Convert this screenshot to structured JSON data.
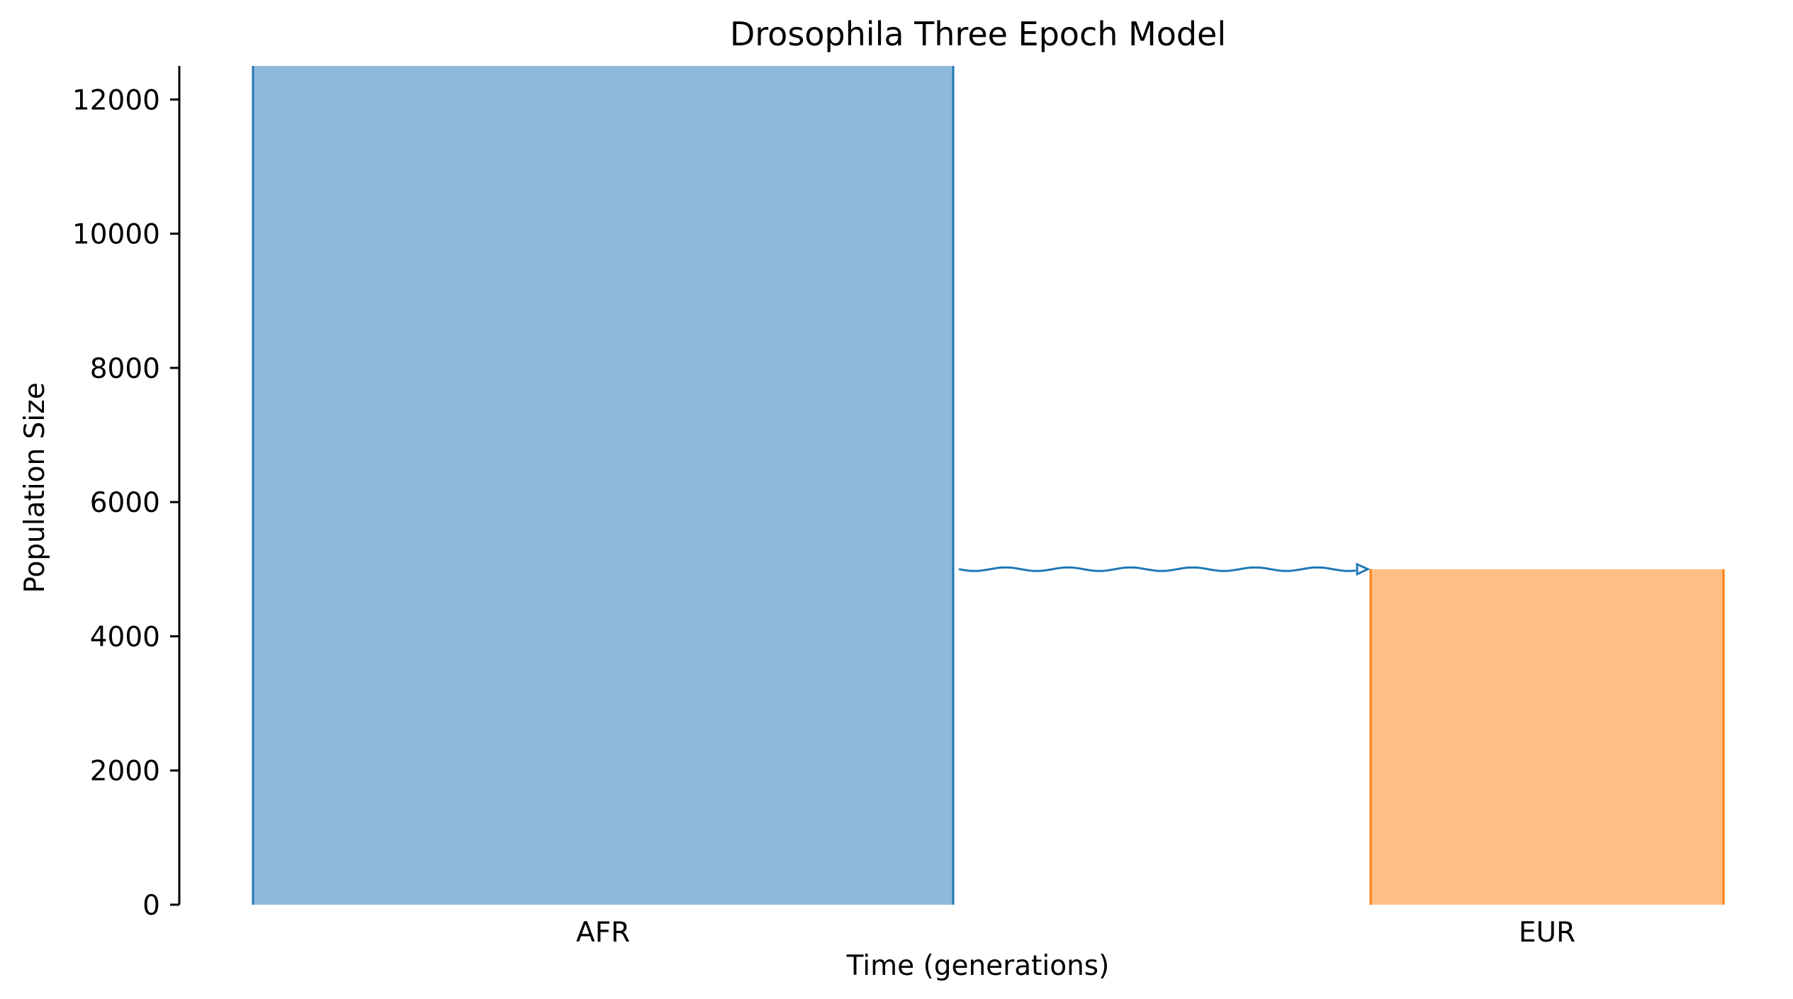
{
  "chart_data": {
    "type": "demography",
    "title": "Drosophila Three Epoch Model",
    "xlabel": "Time (generations)",
    "ylabel": "Population Size",
    "ylim": [
      0,
      12500
    ],
    "yticks": [
      0,
      2000,
      4000,
      6000,
      8000,
      10000,
      12000
    ],
    "grid": false,
    "legend": "none",
    "demes": [
      {
        "name": "AFR",
        "size": 12500,
        "color": "#1f77b4",
        "fill": "#8fb9d9"
      },
      {
        "name": "EUR",
        "size": 5000,
        "color": "#ff7f0e",
        "fill": "#ffbe86"
      }
    ],
    "migrations": [
      {
        "source": "AFR",
        "dest": "EUR",
        "at_size": 5000,
        "color": "#1f77b4"
      }
    ]
  }
}
